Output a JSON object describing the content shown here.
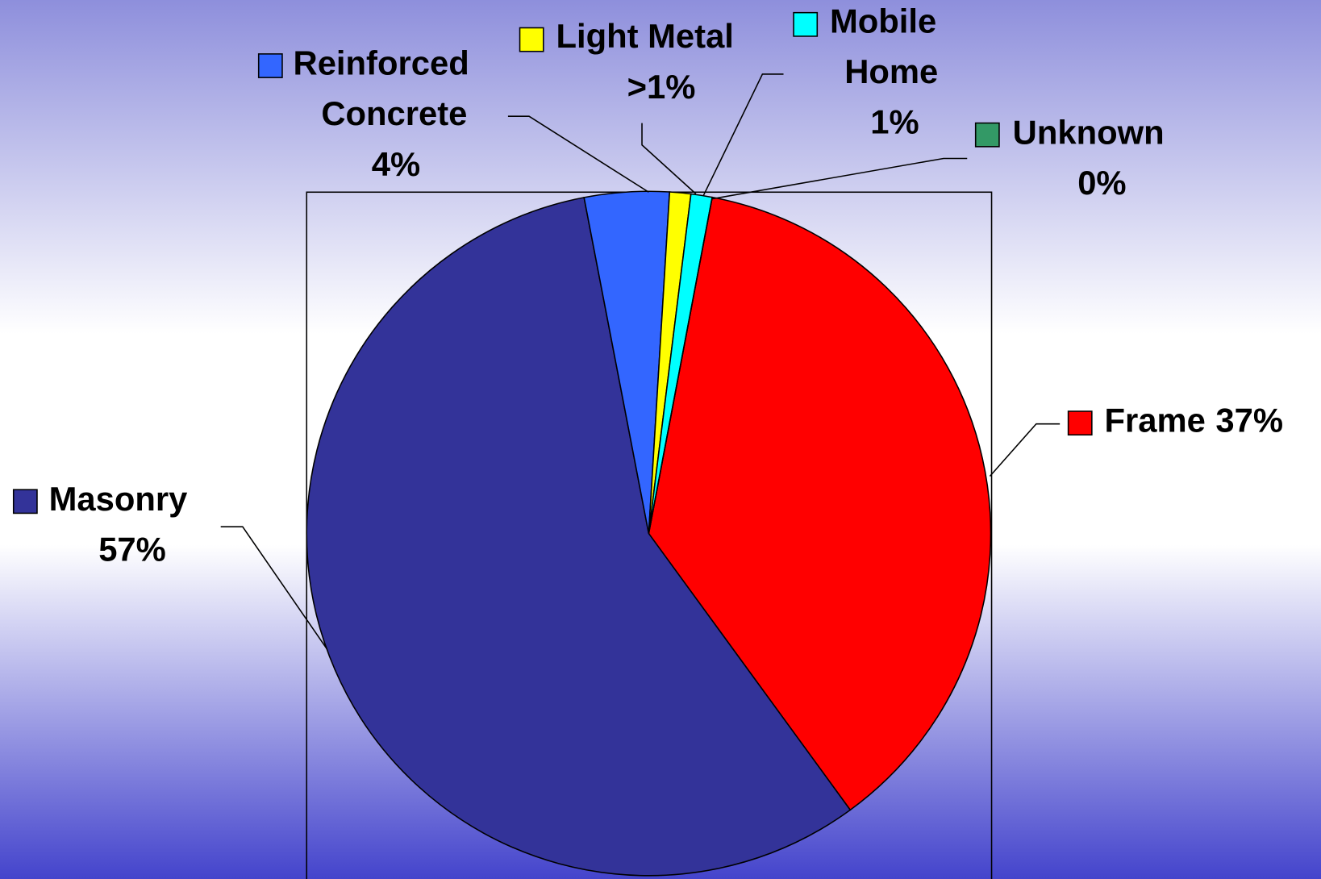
{
  "chart_data": {
    "type": "pie",
    "categories": [
      "Frame",
      "Masonry",
      "Reinforced Concrete",
      "Light Metal",
      "Mobile Home",
      "Unknown"
    ],
    "values": [
      37,
      57,
      4,
      1,
      1,
      0
    ],
    "value_labels": [
      "37%",
      "57%",
      "4%",
      ">1%",
      "1%",
      "0%"
    ],
    "colors": [
      "#ff0000",
      "#333399",
      "#3366ff",
      "#ffff00",
      "#00ffff",
      "#339966"
    ]
  }
}
